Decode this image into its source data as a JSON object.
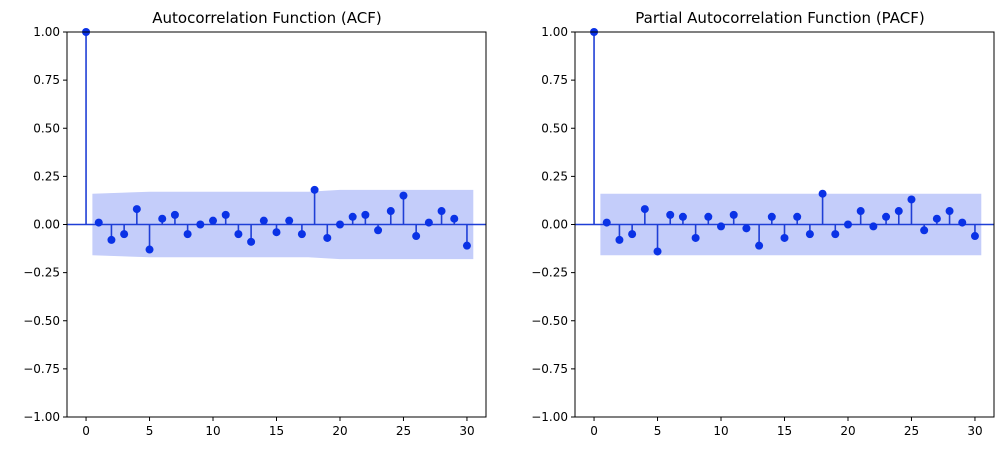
{
  "chart_data": [
    {
      "type": "stem",
      "title": "Autocorrelation Function (ACF)",
      "xlabel": "",
      "ylabel": "",
      "xlim": [
        -1.5,
        31.5
      ],
      "ylim": [
        -1.0,
        1.0
      ],
      "xticks": [
        0,
        5,
        10,
        15,
        20,
        25,
        30
      ],
      "xtick_labels": [
        "0",
        "5",
        "10",
        "15",
        "20",
        "25",
        "30"
      ],
      "yticks": [
        -1.0,
        -0.75,
        -0.5,
        -0.25,
        0.0,
        0.25,
        0.5,
        0.75,
        1.0
      ],
      "ytick_labels": [
        "−1.00",
        "−0.75",
        "−0.50",
        "−0.25",
        "0.00",
        "0.25",
        "0.50",
        "0.75",
        "1.00"
      ],
      "lags": [
        0,
        1,
        2,
        3,
        4,
        5,
        6,
        7,
        8,
        9,
        10,
        11,
        12,
        13,
        14,
        15,
        16,
        17,
        18,
        19,
        20,
        21,
        22,
        23,
        24,
        25,
        26,
        27,
        28,
        29,
        30
      ],
      "values": [
        1.0,
        0.01,
        -0.08,
        -0.05,
        0.08,
        -0.13,
        0.03,
        0.05,
        -0.05,
        0.0,
        0.02,
        0.05,
        -0.05,
        -0.09,
        0.02,
        -0.04,
        0.02,
        -0.05,
        0.18,
        -0.07,
        0.0,
        0.04,
        0.05,
        -0.03,
        0.07,
        0.15,
        -0.06,
        0.01,
        0.07,
        0.03,
        -0.11
      ],
      "confidence_band": {
        "lags": [
          0.5,
          5,
          10,
          15,
          17.5,
          20,
          25,
          30.5
        ],
        "upper": [
          0.16,
          0.17,
          0.17,
          0.17,
          0.17,
          0.18,
          0.18,
          0.18
        ],
        "lower": [
          -0.16,
          -0.17,
          -0.17,
          -0.17,
          -0.17,
          -0.18,
          -0.18,
          -0.18
        ]
      },
      "colors": {
        "stem": "#1f3fd6",
        "marker": "#0a32e6",
        "band": "#c4cdfa",
        "zero_line": "#1f3fd6"
      }
    },
    {
      "type": "stem",
      "title": "Partial Autocorrelation Function (PACF)",
      "xlabel": "",
      "ylabel": "",
      "xlim": [
        -1.5,
        31.5
      ],
      "ylim": [
        -1.0,
        1.0
      ],
      "xticks": [
        0,
        5,
        10,
        15,
        20,
        25,
        30
      ],
      "xtick_labels": [
        "0",
        "5",
        "10",
        "15",
        "20",
        "25",
        "30"
      ],
      "yticks": [
        -1.0,
        -0.75,
        -0.5,
        -0.25,
        0.0,
        0.25,
        0.5,
        0.75,
        1.0
      ],
      "ytick_labels": [
        "−1.00",
        "−0.75",
        "−0.50",
        "−0.25",
        "0.00",
        "0.25",
        "0.50",
        "0.75",
        "1.00"
      ],
      "lags": [
        0,
        1,
        2,
        3,
        4,
        5,
        6,
        7,
        8,
        9,
        10,
        11,
        12,
        13,
        14,
        15,
        16,
        17,
        18,
        19,
        20,
        21,
        22,
        23,
        24,
        25,
        26,
        27,
        28,
        29,
        30
      ],
      "values": [
        1.0,
        0.01,
        -0.08,
        -0.05,
        0.08,
        -0.14,
        0.05,
        0.04,
        -0.07,
        0.04,
        -0.01,
        0.05,
        -0.02,
        -0.11,
        0.04,
        -0.07,
        0.04,
        -0.05,
        0.16,
        -0.05,
        0.0,
        0.07,
        -0.01,
        0.04,
        0.07,
        0.13,
        -0.03,
        0.03,
        0.07,
        0.01,
        -0.06
      ],
      "confidence_band": {
        "lags": [
          0.5,
          30.5
        ],
        "upper": [
          0.16,
          0.16
        ],
        "lower": [
          -0.16,
          -0.16
        ]
      },
      "colors": {
        "stem": "#1f3fd6",
        "marker": "#0a32e6",
        "band": "#c4cdfa",
        "zero_line": "#1f3fd6"
      }
    }
  ]
}
